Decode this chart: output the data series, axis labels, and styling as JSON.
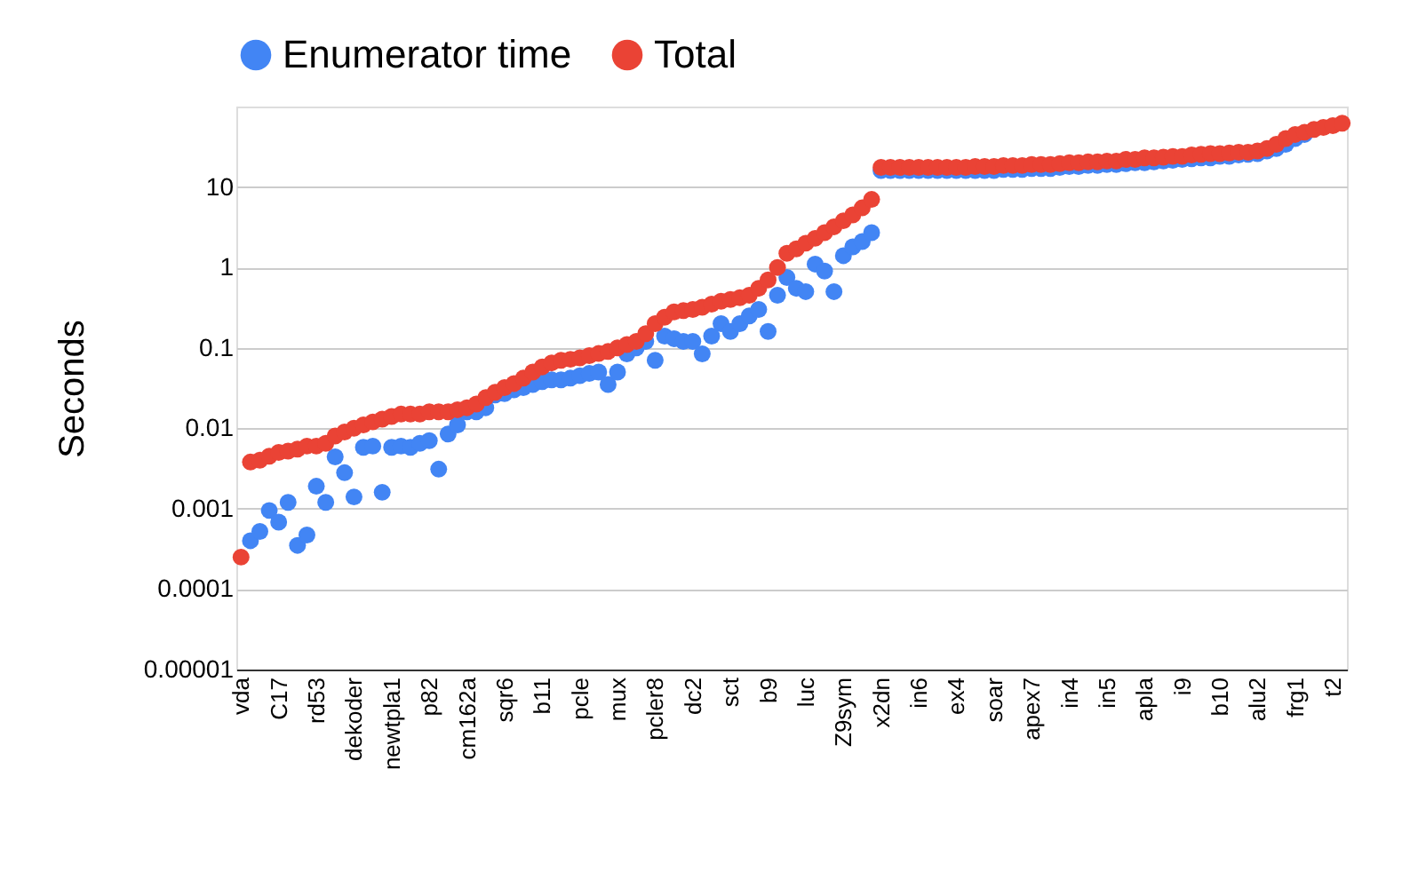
{
  "chart_data": {
    "type": "scatter",
    "ylabel": "Seconds",
    "log": true,
    "grid": "y",
    "legend": "top",
    "marker": "circle",
    "ylim": [
      1e-05,
      100
    ],
    "yticks": [
      {
        "value": 1e-05,
        "label": "0.00001"
      },
      0.0001,
      0.001,
      0.01,
      0.1,
      1,
      10
    ],
    "categories": [
      "vda",
      null,
      null,
      null,
      "C17",
      null,
      null,
      null,
      "rd53",
      null,
      null,
      null,
      "dekoder",
      null,
      null,
      null,
      "newtpla1",
      null,
      null,
      null,
      "p82",
      null,
      null,
      null,
      "cm162a",
      null,
      null,
      null,
      "sqr6",
      null,
      null,
      null,
      "b11",
      null,
      null,
      null,
      "pcle",
      null,
      null,
      null,
      "mux",
      null,
      null,
      null,
      "pcler8",
      null,
      null,
      null,
      "dc2",
      null,
      null,
      null,
      "sct",
      null,
      null,
      null,
      "b9",
      null,
      null,
      null,
      "luc",
      null,
      null,
      null,
      "Z9sym",
      null,
      null,
      null,
      "x2dn",
      null,
      null,
      null,
      "in6",
      null,
      null,
      null,
      "ex4",
      null,
      null,
      null,
      "soar",
      null,
      null,
      null,
      "apex7",
      null,
      null,
      null,
      "in4",
      null,
      null,
      null,
      "in5",
      null,
      null,
      null,
      "apla",
      null,
      null,
      null,
      "i9",
      null,
      null,
      null,
      "b10",
      null,
      null,
      null,
      "alu2",
      null,
      null,
      null,
      "frg1",
      null,
      null,
      null,
      "t2",
      null
    ],
    "series": [
      {
        "name": "Enumerator time",
        "color": "#4285f4",
        "values": [
          null,
          0.0004,
          0.00052,
          0.00095,
          0.00068,
          0.0012,
          0.00035,
          0.00047,
          0.0019,
          0.0012,
          0.0044,
          0.0028,
          0.0014,
          0.0058,
          0.006,
          0.0016,
          0.0058,
          0.006,
          0.0058,
          0.0065,
          0.007,
          0.0031,
          0.0085,
          0.011,
          0.016,
          0.016,
          0.018,
          0.026,
          0.027,
          0.03,
          0.032,
          0.035,
          0.038,
          0.04,
          0.04,
          0.042,
          0.045,
          0.048,
          0.05,
          0.035,
          0.05,
          0.084,
          0.1,
          0.12,
          0.07,
          0.14,
          0.13,
          0.12,
          0.12,
          0.084,
          0.14,
          0.2,
          0.16,
          0.2,
          0.25,
          0.3,
          0.16,
          0.45,
          0.75,
          0.55,
          0.5,
          1.1,
          0.9,
          0.5,
          1.4,
          1.8,
          2.1,
          2.7,
          16,
          16,
          16,
          16,
          16,
          16,
          16,
          16,
          16,
          16,
          16,
          16,
          16,
          16.5,
          16.5,
          16.5,
          17,
          17,
          17,
          17.5,
          18,
          18,
          18.5,
          18.5,
          19,
          19,
          19.5,
          20,
          20,
          20.5,
          21,
          21.5,
          22,
          22.5,
          23,
          23,
          24,
          24,
          25,
          25.5,
          26,
          28,
          30,
          34,
          40,
          45,
          null,
          null,
          null,
          null
        ]
      },
      {
        "name": "Total",
        "color": "#ea4335",
        "values": [
          0.00025,
          0.0038,
          0.004,
          0.0045,
          0.005,
          0.0052,
          0.0055,
          0.006,
          0.006,
          0.0065,
          0.008,
          0.009,
          0.01,
          0.011,
          0.012,
          0.013,
          0.014,
          0.015,
          0.015,
          0.015,
          0.016,
          0.016,
          0.016,
          0.017,
          0.018,
          0.02,
          0.024,
          0.028,
          0.032,
          0.036,
          0.042,
          0.05,
          0.058,
          0.065,
          0.07,
          0.072,
          0.075,
          0.08,
          0.085,
          0.09,
          0.1,
          0.11,
          0.12,
          0.15,
          0.2,
          0.24,
          0.28,
          0.29,
          0.3,
          0.32,
          0.35,
          0.38,
          0.4,
          0.42,
          0.45,
          0.55,
          0.7,
          1.0,
          1.5,
          1.7,
          2.0,
          2.3,
          2.7,
          3.2,
          3.8,
          4.5,
          5.5,
          7.0,
          17.5,
          17.5,
          17.5,
          17.5,
          17.5,
          17.5,
          17.5,
          17.5,
          17.5,
          17.5,
          18,
          18,
          18,
          18.5,
          18.5,
          18.5,
          19,
          19,
          19,
          19.5,
          20,
          20,
          20.5,
          20.5,
          21,
          21,
          22,
          22,
          23,
          23,
          23.5,
          24,
          24,
          25,
          25.5,
          26,
          26,
          26.5,
          27,
          27,
          28,
          30,
          34,
          40,
          45,
          48,
          52,
          55,
          58,
          62
        ]
      }
    ]
  }
}
